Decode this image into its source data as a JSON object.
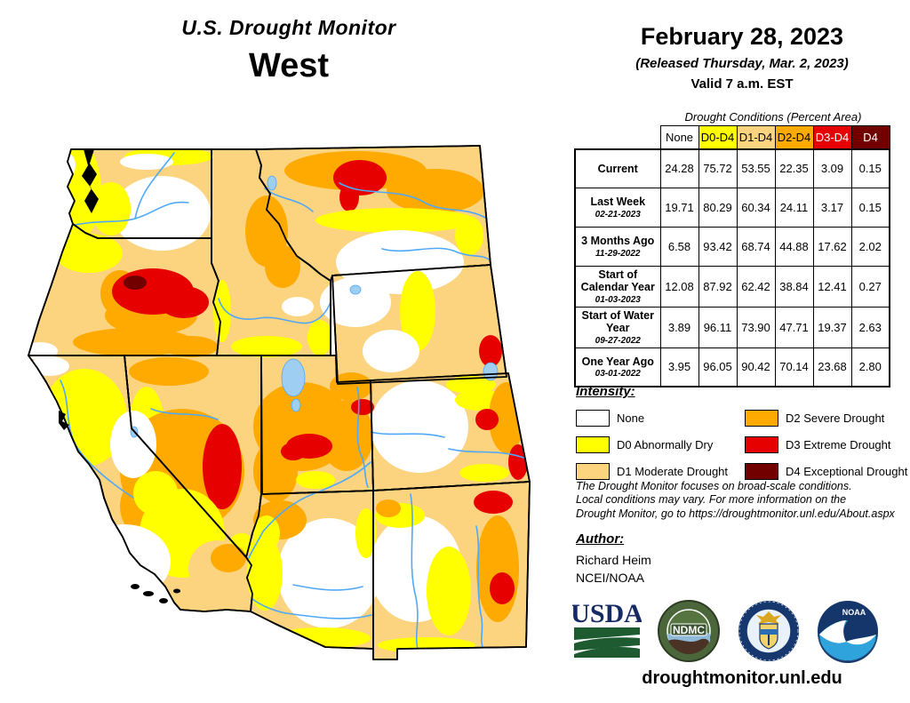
{
  "title": {
    "line1": "U.S. Drought Monitor",
    "line2": "West"
  },
  "header": {
    "date": "February 28, 2023",
    "released": "(Released Thursday, Mar. 2, 2023)",
    "valid": "Valid 7 a.m. EST"
  },
  "table": {
    "caption": "Drought Conditions (Percent Area)",
    "columns": [
      "None",
      "D0-D4",
      "D1-D4",
      "D2-D4",
      "D3-D4",
      "D4"
    ],
    "column_colors": [
      "#FFFFFF",
      "#FFFF00",
      "#FCD37F",
      "#FFAA00",
      "#E60000",
      "#730000"
    ],
    "column_text_colors": [
      "#000000",
      "#000000",
      "#000000",
      "#000000",
      "#FFFFFF",
      "#FFFFFF"
    ],
    "rows": [
      {
        "label": "Current",
        "date": "",
        "values": [
          "24.28",
          "75.72",
          "53.55",
          "22.35",
          "3.09",
          "0.15"
        ]
      },
      {
        "label": "Last Week",
        "date": "02-21-2023",
        "values": [
          "19.71",
          "80.29",
          "60.34",
          "24.11",
          "3.17",
          "0.15"
        ]
      },
      {
        "label": "3 Months Ago",
        "date": "11-29-2022",
        "values": [
          "6.58",
          "93.42",
          "68.74",
          "44.88",
          "17.62",
          "2.02"
        ]
      },
      {
        "label": "Start of Calendar Year",
        "date": "01-03-2023",
        "values": [
          "12.08",
          "87.92",
          "62.42",
          "38.84",
          "12.41",
          "0.27"
        ]
      },
      {
        "label": "Start of Water Year",
        "date": "09-27-2022",
        "values": [
          "3.89",
          "96.11",
          "73.90",
          "47.71",
          "19.37",
          "2.63"
        ]
      },
      {
        "label": "One Year Ago",
        "date": "03-01-2022",
        "values": [
          "3.95",
          "96.05",
          "90.42",
          "70.14",
          "23.68",
          "2.80"
        ]
      }
    ]
  },
  "legend": {
    "heading": "Intensity:",
    "items": [
      {
        "label": "None",
        "color": "#FFFFFF"
      },
      {
        "label": "D0 Abnormally Dry",
        "color": "#FFFF00"
      },
      {
        "label": "D1 Moderate Drought",
        "color": "#FCD37F"
      },
      {
        "label": "D2 Severe Drought",
        "color": "#FFAA00"
      },
      {
        "label": "D3 Extreme Drought",
        "color": "#E60000"
      },
      {
        "label": "D4 Exceptional Drought",
        "color": "#730000"
      }
    ]
  },
  "disclaimer": {
    "lines": [
      "The Drought Monitor focuses on broad-scale conditions.",
      "Local conditions may vary. For more information on the",
      "Drought Monitor, go to https://droughtmonitor.unl.edu/About.aspx"
    ]
  },
  "author": {
    "heading": "Author:",
    "name": "Richard Heim",
    "org": "NCEI/NOAA"
  },
  "logos": [
    {
      "name": "usda-logo",
      "label": "USDA"
    },
    {
      "name": "ndmc-logo",
      "label": "NDMC"
    },
    {
      "name": "doc-logo",
      "label": "DOC"
    },
    {
      "name": "noaa-logo",
      "label": "NOAA"
    }
  ],
  "footer": {
    "url": "droughtmonitor.unl.edu"
  },
  "map": {
    "states": [
      "Washington",
      "Oregon",
      "California",
      "Nevada",
      "Idaho",
      "Montana",
      "Wyoming",
      "Utah",
      "Colorado",
      "Arizona",
      "New Mexico"
    ],
    "colors": {
      "none": "#FFFFFF",
      "d0": "#FFFF00",
      "d1": "#FCD37F",
      "d2": "#FFAA00",
      "d3": "#E60000",
      "d4": "#730000",
      "river": "#4FA8F8",
      "lake": "#9ECFF2",
      "border": "#000000"
    }
  }
}
